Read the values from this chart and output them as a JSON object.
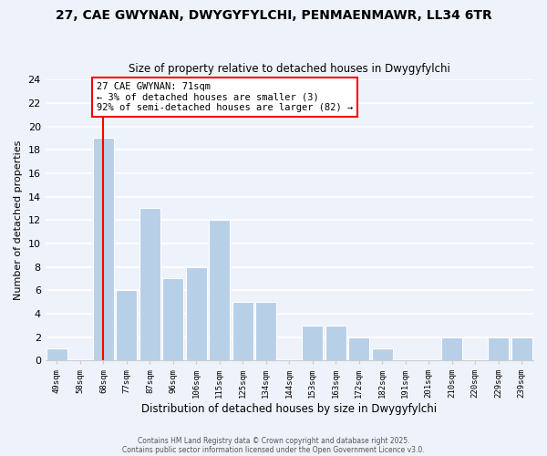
{
  "title1": "27, CAE GWYNAN, DWYGYFYLCHI, PENMAENMAWR, LL34 6TR",
  "title2": "Size of property relative to detached houses in Dwygyfylchi",
  "xlabel": "Distribution of detached houses by size in Dwygyfylchi",
  "ylabel": "Number of detached properties",
  "bin_labels": [
    "49sqm",
    "58sqm",
    "68sqm",
    "77sqm",
    "87sqm",
    "96sqm",
    "106sqm",
    "115sqm",
    "125sqm",
    "134sqm",
    "144sqm",
    "153sqm",
    "163sqm",
    "172sqm",
    "182sqm",
    "191sqm",
    "201sqm",
    "210sqm",
    "220sqm",
    "229sqm",
    "239sqm"
  ],
  "bar_values": [
    1,
    0,
    19,
    6,
    13,
    7,
    8,
    12,
    5,
    5,
    0,
    3,
    3,
    2,
    1,
    0,
    0,
    2,
    0,
    2,
    2
  ],
  "bar_color": "#b8cfe8",
  "bar_edge_color": "#b8cfe8",
  "vline_x_index": 2,
  "vline_color": "red",
  "annotation_text": "27 CAE GWYNAN: 71sqm\n← 3% of detached houses are smaller (3)\n92% of semi-detached houses are larger (82) →",
  "annotation_box_color": "white",
  "annotation_box_edge": "red",
  "ylim": [
    0,
    24
  ],
  "yticks": [
    0,
    2,
    4,
    6,
    8,
    10,
    12,
    14,
    16,
    18,
    20,
    22,
    24
  ],
  "background_color": "#eef2fb",
  "footer1": "Contains HM Land Registry data © Crown copyright and database right 2025.",
  "footer2": "Contains public sector information licensed under the Open Government Licence v3.0.",
  "grid_color": "white"
}
